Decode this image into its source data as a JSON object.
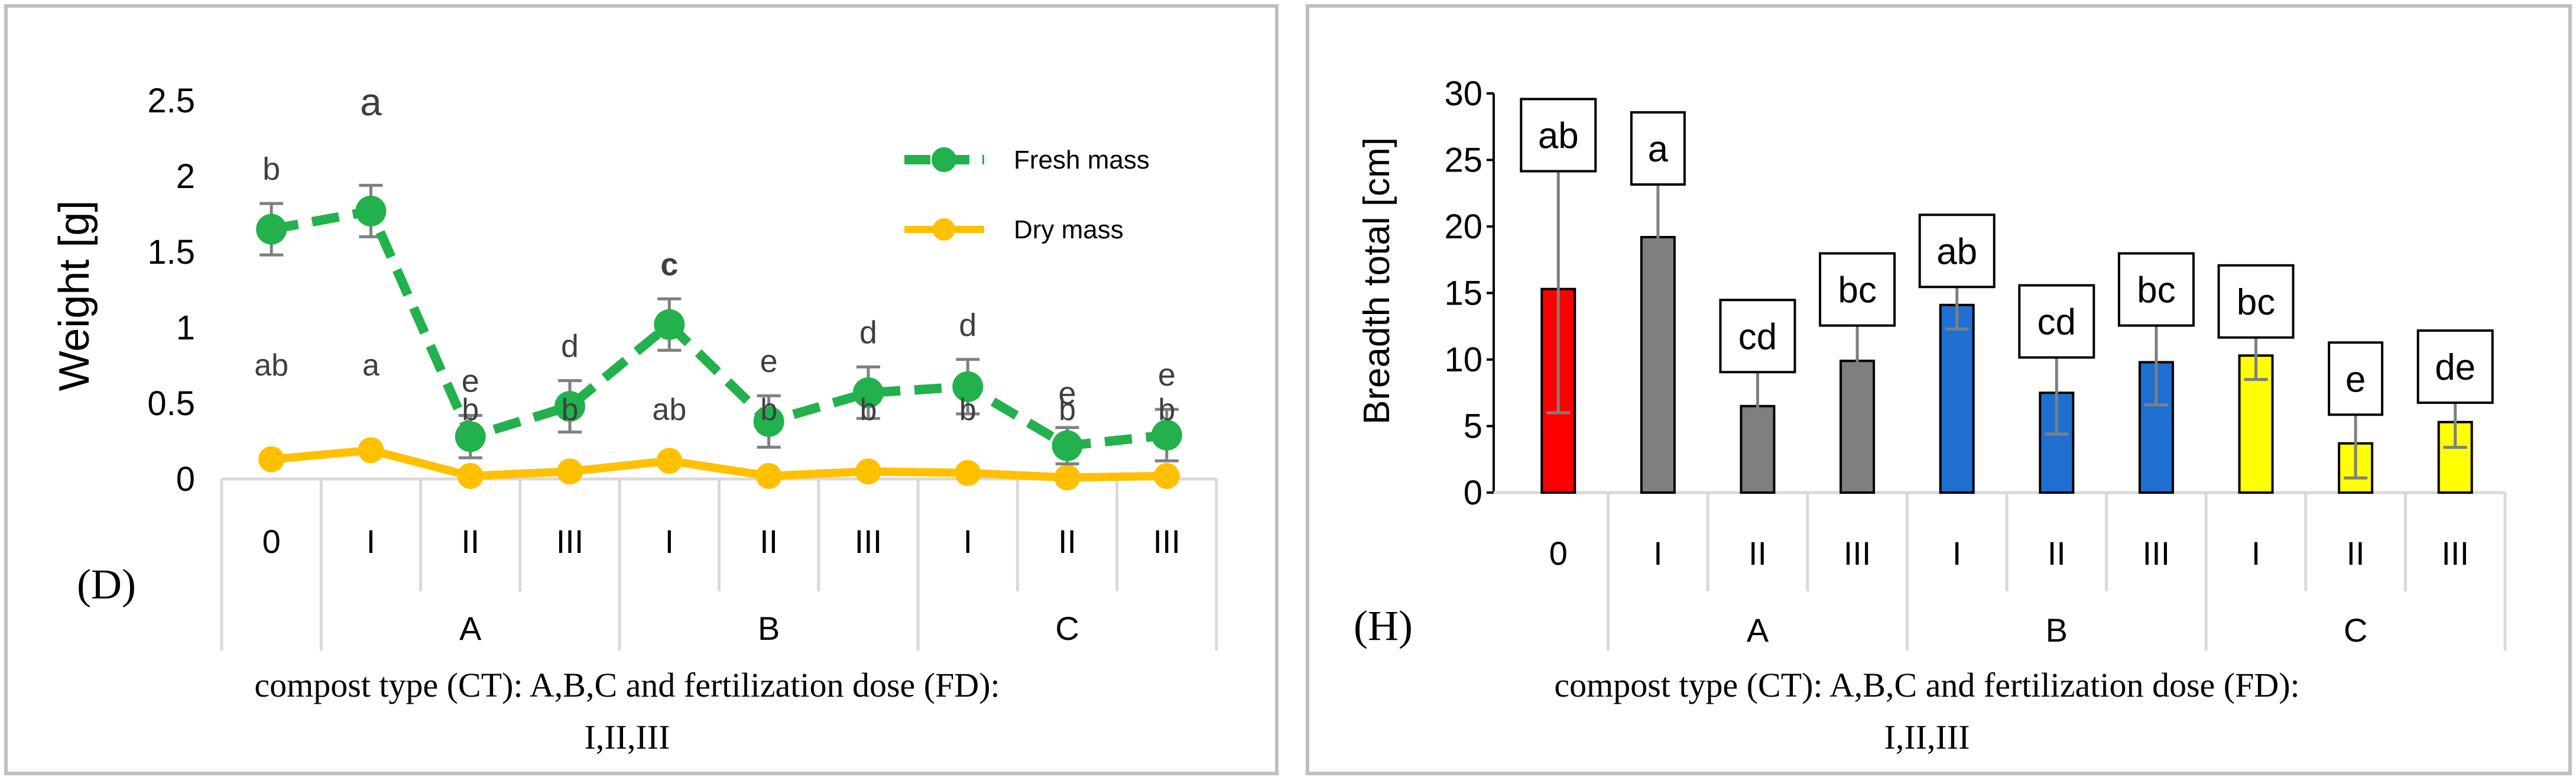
{
  "colors": {
    "fresh": "#22b14c",
    "dry": "#ffc000",
    "errorbar": "#7f7f7f",
    "axis": "#d9d9d9",
    "panel_border": "#bfbfbf",
    "bar_control": "#ff0000",
    "bar_A": "#7f7f7f",
    "bar_B": "#1f6fd0",
    "bar_C": "#ffff00"
  },
  "chart_data": [
    {
      "type": "line",
      "panel_label": "(D)",
      "ylabel": "Weight [g]",
      "xlabel_line1": "compost type (CT): A,B,C  and fertilization dose (FD):",
      "xlabel_line2": "I,II,III",
      "ylim": [
        0,
        2.5
      ],
      "yticks": [
        "0",
        "0.5",
        "1",
        "1.5",
        "2",
        "2.5"
      ],
      "yticks_values": [
        0,
        0.5,
        1,
        1.5,
        2,
        2.5
      ],
      "categories": [
        "0",
        "I",
        "II",
        "III",
        "I",
        "II",
        "III",
        "I",
        "II",
        "III"
      ],
      "groups": [
        {
          "label": "A",
          "from": 1,
          "to": 3
        },
        {
          "label": "B",
          "from": 4,
          "to": 6
        },
        {
          "label": "C",
          "from": 7,
          "to": 9
        }
      ],
      "legend_position": "top-right",
      "series": [
        {
          "name": "Fresh mass",
          "style": "dashed",
          "values": [
            1.65,
            1.77,
            0.28,
            0.48,
            1.02,
            0.38,
            0.57,
            0.61,
            0.22,
            0.29
          ],
          "errors": [
            0.17,
            0.17,
            0.14,
            0.17,
            0.17,
            0.17,
            0.17,
            0.18,
            0.12,
            0.17
          ],
          "letters": [
            "b",
            "a",
            "e",
            "d",
            "c",
            "e",
            "d",
            "d",
            "e",
            "e"
          ]
        },
        {
          "name": "Dry mass",
          "style": "solid",
          "values": [
            0.13,
            0.19,
            0.02,
            0.05,
            0.12,
            0.02,
            0.05,
            0.04,
            0.01,
            0.02
          ],
          "letters": [
            "ab",
            "a",
            "b",
            "b",
            "ab",
            "b",
            "b",
            "b",
            "b",
            "b"
          ]
        }
      ]
    },
    {
      "type": "bar",
      "panel_label": "(H)",
      "ylabel": "Breadth total [cm]",
      "xlabel_line1": "compost type (CT): A,B,C  and fertilization dose (FD):",
      "xlabel_line2": "I,II,III",
      "ylim": [
        0,
        30
      ],
      "yticks": [
        "0",
        "5",
        "10",
        "15",
        "20",
        "25",
        "30"
      ],
      "yticks_values": [
        0,
        5,
        10,
        15,
        20,
        25,
        30
      ],
      "categories": [
        "0",
        "I",
        "II",
        "III",
        "I",
        "II",
        "III",
        "I",
        "II",
        "III"
      ],
      "groups": [
        {
          "label": "A",
          "from": 1,
          "to": 3
        },
        {
          "label": "B",
          "from": 4,
          "to": 6
        },
        {
          "label": "C",
          "from": 7,
          "to": 9
        }
      ],
      "values": [
        15.3,
        19.2,
        6.5,
        9.9,
        14.1,
        7.5,
        9.8,
        10.3,
        3.7,
        5.3
      ],
      "errors": [
        9.3,
        4.4,
        3.0,
        3.1,
        1.8,
        3.1,
        3.2,
        1.8,
        2.6,
        1.9
      ],
      "letters": [
        "ab",
        "a",
        "cd",
        "bc",
        "ab",
        "cd",
        "bc",
        "bc",
        "e",
        "de"
      ],
      "bar_color_keys": [
        "bar_control",
        "bar_A",
        "bar_A",
        "bar_A",
        "bar_B",
        "bar_B",
        "bar_B",
        "bar_C",
        "bar_C",
        "bar_C"
      ]
    }
  ]
}
